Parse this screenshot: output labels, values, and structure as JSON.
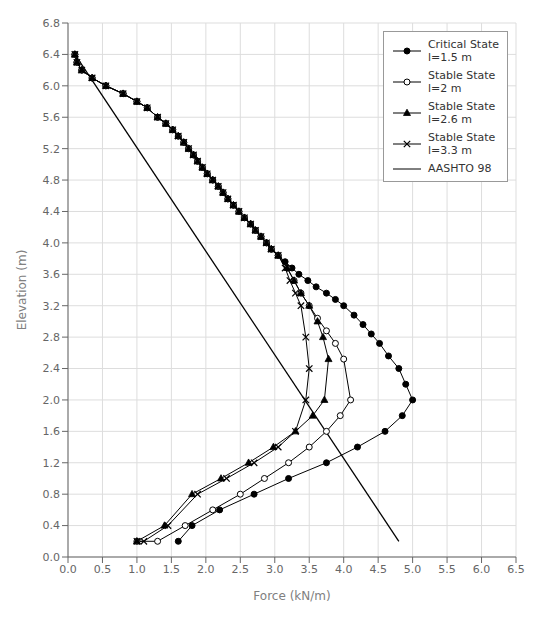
{
  "chart_data": {
    "type": "line",
    "xlabel": "Force (kN/m)",
    "ylabel": "Elevation (m)",
    "xlim": [
      0,
      6.5
    ],
    "ylim": [
      0,
      6.8
    ],
    "xticks": [
      {
        "value": 0,
        "label": "0.0"
      },
      0.5,
      {
        "value": 1,
        "label": "1.0"
      },
      1.5,
      {
        "value": 2,
        "label": "2.0"
      },
      2.5,
      {
        "value": 3,
        "label": "3.0"
      },
      3.5,
      {
        "value": 4,
        "label": "4.0"
      },
      4.5,
      {
        "value": 5,
        "label": "5.0"
      },
      5.5,
      {
        "value": 6,
        "label": "6.0"
      },
      6.5
    ],
    "yticks": [
      {
        "value": 0,
        "label": "0.0"
      },
      0.4,
      0.8,
      1.2,
      1.6,
      {
        "value": 2,
        "label": "2.0"
      },
      2.4,
      2.8,
      3.2,
      3.6,
      {
        "value": 4,
        "label": "4.0"
      },
      4.4,
      4.8,
      5.2,
      5.6,
      {
        "value": 6,
        "label": "6.0"
      },
      6.4,
      6.8
    ],
    "grid": true,
    "legend": "upper right",
    "series": [
      {
        "name": "Critical State\nl=1.5 m",
        "color": "#000000",
        "marker": "circle",
        "line_style": "solid",
        "x": [
          0.1,
          0.13,
          0.2,
          0.35,
          0.55,
          0.8,
          1.0,
          1.15,
          1.3,
          1.42,
          1.52,
          1.6,
          1.68,
          1.75,
          1.82,
          1.88,
          1.95,
          2.02,
          2.1,
          2.18,
          2.25,
          2.32,
          2.4,
          2.48,
          2.56,
          2.65,
          2.72,
          2.8,
          2.88,
          2.95,
          3.05,
          3.15,
          3.25,
          3.35,
          3.48,
          3.6,
          3.75,
          3.88,
          4.0,
          4.15,
          4.28,
          4.4,
          4.52,
          4.65,
          4.8,
          4.9,
          5.0,
          4.85,
          4.6,
          4.2,
          3.75,
          3.2,
          2.7,
          2.2,
          1.8,
          1.6
        ],
        "values": [
          6.4,
          6.3,
          6.2,
          6.1,
          6.0,
          5.9,
          5.8,
          5.72,
          5.6,
          5.52,
          5.44,
          5.36,
          5.28,
          5.2,
          5.12,
          5.04,
          4.96,
          4.88,
          4.8,
          4.72,
          4.64,
          4.56,
          4.48,
          4.4,
          4.32,
          4.24,
          4.16,
          4.08,
          4.0,
          3.92,
          3.84,
          3.76,
          3.68,
          3.6,
          3.52,
          3.44,
          3.36,
          3.28,
          3.2,
          3.08,
          2.96,
          2.84,
          2.72,
          2.56,
          2.4,
          2.2,
          2.0,
          1.8,
          1.6,
          1.4,
          1.2,
          1.0,
          0.8,
          0.6,
          0.4,
          0.2
        ]
      },
      {
        "name": "Stable State\nl=2 m",
        "color": "#000000",
        "marker": "open_circle",
        "line_style": "solid",
        "x": [
          0.1,
          0.13,
          0.2,
          0.35,
          0.55,
          0.8,
          1.0,
          1.15,
          1.3,
          1.42,
          1.52,
          1.6,
          1.68,
          1.75,
          1.82,
          1.88,
          1.95,
          2.02,
          2.1,
          2.18,
          2.25,
          2.32,
          2.4,
          2.48,
          2.56,
          2.65,
          2.72,
          2.8,
          2.88,
          2.95,
          3.05,
          3.18,
          3.28,
          3.38,
          3.5,
          3.62,
          3.75,
          3.88,
          4.0,
          4.1,
          3.95,
          3.75,
          3.5,
          3.2,
          2.85,
          2.5,
          2.1,
          1.7,
          1.3,
          1.0
        ],
        "values": [
          6.4,
          6.3,
          6.2,
          6.1,
          6.0,
          5.9,
          5.8,
          5.72,
          5.6,
          5.52,
          5.44,
          5.36,
          5.28,
          5.2,
          5.12,
          5.04,
          4.96,
          4.88,
          4.8,
          4.72,
          4.64,
          4.56,
          4.48,
          4.4,
          4.32,
          4.24,
          4.16,
          4.08,
          4.0,
          3.92,
          3.84,
          3.68,
          3.52,
          3.36,
          3.2,
          3.04,
          2.88,
          2.72,
          2.52,
          2.0,
          1.8,
          1.6,
          1.4,
          1.2,
          1.0,
          0.8,
          0.6,
          0.4,
          0.2,
          0.2
        ]
      },
      {
        "name": "Stable State\nl=2.6 m",
        "color": "#000000",
        "marker": "triangle",
        "line_style": "solid",
        "x": [
          0.1,
          0.13,
          0.2,
          0.35,
          0.55,
          0.8,
          1.0,
          1.15,
          1.3,
          1.42,
          1.52,
          1.6,
          1.68,
          1.75,
          1.82,
          1.88,
          1.95,
          2.02,
          2.1,
          2.18,
          2.25,
          2.32,
          2.4,
          2.48,
          2.56,
          2.65,
          2.72,
          2.8,
          2.88,
          2.95,
          3.05,
          3.18,
          3.28,
          3.38,
          3.5,
          3.62,
          3.7,
          3.78,
          3.72,
          3.55,
          3.3,
          2.98,
          2.62,
          2.22,
          1.8,
          1.4,
          1.0
        ],
        "values": [
          6.4,
          6.3,
          6.2,
          6.1,
          6.0,
          5.9,
          5.8,
          5.72,
          5.6,
          5.52,
          5.44,
          5.36,
          5.28,
          5.2,
          5.12,
          5.04,
          4.96,
          4.88,
          4.8,
          4.72,
          4.64,
          4.56,
          4.48,
          4.4,
          4.32,
          4.24,
          4.16,
          4.08,
          4.0,
          3.92,
          3.84,
          3.68,
          3.52,
          3.36,
          3.2,
          3.0,
          2.8,
          2.52,
          2.0,
          1.8,
          1.6,
          1.4,
          1.2,
          1.0,
          0.8,
          0.4,
          0.2
        ]
      },
      {
        "name": "Stable State\nl=3.3 m",
        "color": "#000000",
        "marker": "x",
        "line_style": "solid",
        "x": [
          0.1,
          0.13,
          0.2,
          0.35,
          0.55,
          0.8,
          1.0,
          1.15,
          1.3,
          1.42,
          1.52,
          1.6,
          1.68,
          1.75,
          1.82,
          1.88,
          1.95,
          2.02,
          2.1,
          2.18,
          2.25,
          2.32,
          2.4,
          2.48,
          2.56,
          2.65,
          2.72,
          2.8,
          2.88,
          2.95,
          3.05,
          3.15,
          3.22,
          3.3,
          3.38,
          3.45,
          3.5,
          3.45,
          3.3,
          3.05,
          2.7,
          2.3,
          1.88,
          1.45,
          1.1,
          1.0
        ],
        "values": [
          6.4,
          6.3,
          6.2,
          6.1,
          6.0,
          5.9,
          5.8,
          5.72,
          5.6,
          5.52,
          5.44,
          5.36,
          5.28,
          5.2,
          5.12,
          5.04,
          4.96,
          4.88,
          4.8,
          4.72,
          4.64,
          4.56,
          4.48,
          4.4,
          4.32,
          4.24,
          4.16,
          4.08,
          4.0,
          3.92,
          3.84,
          3.68,
          3.52,
          3.36,
          3.2,
          2.8,
          2.4,
          2.0,
          1.6,
          1.4,
          1.2,
          1.0,
          0.8,
          0.4,
          0.2,
          0.2
        ]
      },
      {
        "name": "AASHTO 98",
        "color": "#000000",
        "marker": "none",
        "line_style": "solid",
        "x": [
          0.1,
          4.8
        ],
        "values": [
          6.4,
          0.2
        ]
      }
    ]
  }
}
